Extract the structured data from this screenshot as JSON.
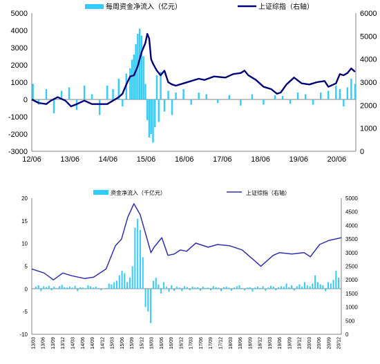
{
  "chart_data": [
    {
      "type": "bar+line",
      "title": "",
      "legend": [
        {
          "label": "每周资金净流入（亿元）",
          "kind": "bar",
          "color": "#33ccff"
        },
        {
          "label": "上证综指（右轴）",
          "kind": "line",
          "color": "#00007a"
        }
      ],
      "legend_placement": "top",
      "x_ticks": [
        "12/06",
        "13/06",
        "14/06",
        "15/06",
        "16/06",
        "17/06",
        "18/06",
        "19/06",
        "20/06"
      ],
      "x_range": [
        2012.42,
        2020.92
      ],
      "y_left": {
        "min": -3000,
        "max": 5000,
        "ticks": [
          -3000,
          -2000,
          -1000,
          0,
          1000,
          2000,
          3000,
          4000,
          5000
        ]
      },
      "y_right": {
        "min": 0,
        "max": 6000,
        "ticks": [
          0,
          1000,
          2000,
          3000,
          4000,
          5000,
          6000
        ]
      },
      "grid": false,
      "bar_series": {
        "name": "每周资金净流入（亿元）",
        "t": [
          2012.45,
          2012.6,
          2012.8,
          2013.0,
          2013.2,
          2013.4,
          2013.6,
          2013.8,
          2014.0,
          2014.2,
          2014.4,
          2014.55,
          2014.7,
          2014.8,
          2014.9,
          2015.0,
          2015.05,
          2015.1,
          2015.15,
          2015.2,
          2015.25,
          2015.3,
          2015.35,
          2015.4,
          2015.45,
          2015.5,
          2015.55,
          2015.6,
          2015.65,
          2015.7,
          2015.75,
          2015.8,
          2015.9,
          2016.0,
          2016.1,
          2016.2,
          2016.4,
          2016.6,
          2016.8,
          2017.0,
          2017.3,
          2017.6,
          2017.9,
          2018.2,
          2018.5,
          2018.8,
          2019.0,
          2019.2,
          2019.4,
          2019.6,
          2019.8,
          2020.0,
          2020.2,
          2020.4,
          2020.5,
          2020.6,
          2020.7,
          2020.8,
          2020.9
        ],
        "values": [
          900,
          -300,
          600,
          -800,
          500,
          700,
          -600,
          800,
          300,
          -900,
          800,
          600,
          1200,
          -400,
          1500,
          1800,
          2300,
          2600,
          3200,
          3800,
          4100,
          3700,
          2500,
          900,
          -1200,
          -2200,
          -2000,
          -2500,
          -1600,
          1400,
          -1300,
          1600,
          -700,
          500,
          -900,
          400,
          600,
          -300,
          400,
          300,
          -200,
          250,
          -350,
          300,
          -300,
          250,
          200,
          -250,
          400,
          300,
          -300,
          400,
          500,
          800,
          600,
          -400,
          700,
          1200,
          900
        ]
      },
      "line_series": {
        "name": "上证综指（右轴）",
        "t": [
          2012.42,
          2012.6,
          2012.8,
          2012.92,
          2013.1,
          2013.3,
          2013.45,
          2013.6,
          2013.8,
          2014.0,
          2014.2,
          2014.4,
          2014.55,
          2014.7,
          2014.8,
          2014.9,
          2015.0,
          2015.1,
          2015.2,
          2015.3,
          2015.4,
          2015.45,
          2015.5,
          2015.55,
          2015.6,
          2015.7,
          2015.8,
          2015.9,
          2016.0,
          2016.1,
          2016.2,
          2016.4,
          2016.6,
          2016.8,
          2016.95,
          2017.2,
          2017.5,
          2017.7,
          2017.9,
          2018.0,
          2018.1,
          2018.3,
          2018.5,
          2018.7,
          2018.85,
          2018.95,
          2019.1,
          2019.3,
          2019.5,
          2019.7,
          2019.9,
          2020.1,
          2020.2,
          2020.4,
          2020.5,
          2020.6,
          2020.7,
          2020.8,
          2020.9
        ],
        "values": [
          2250,
          2100,
          2050,
          2200,
          2350,
          2200,
          1950,
          2050,
          2200,
          2050,
          2050,
          2050,
          2200,
          2350,
          2500,
          2900,
          3250,
          3300,
          3700,
          4300,
          4700,
          5100,
          4900,
          4000,
          3800,
          3500,
          3300,
          3500,
          3000,
          2900,
          2850,
          2950,
          3050,
          3150,
          3100,
          3250,
          3200,
          3350,
          3400,
          3500,
          3300,
          3100,
          2800,
          2700,
          2500,
          2550,
          2900,
          3200,
          2950,
          2900,
          3000,
          3050,
          2800,
          2950,
          3350,
          3300,
          3400,
          3600,
          3450
        ]
      }
    },
    {
      "type": "bar+line",
      "title": "",
      "legend": [
        {
          "label": "资金净流入（千亿元）",
          "kind": "bar",
          "color": "#33ccff"
        },
        {
          "label": "上证综指（右轴）",
          "kind": "line",
          "color": "#2e2eb8"
        }
      ],
      "legend_placement": "top",
      "x_ticks": [
        "13/03",
        "13/06",
        "13/09",
        "13/12",
        "14/03",
        "14/06",
        "14/09",
        "14/12",
        "15/03",
        "15/06",
        "15/09",
        "15/12",
        "16/03",
        "16/06",
        "16/09",
        "16/12",
        "17/03",
        "17/06",
        "17/09",
        "17/12",
        "18/03",
        "18/06",
        "18/09",
        "18/12",
        "19/03",
        "19/06",
        "19/09",
        "19/12",
        "20/03",
        "20/06",
        "20/09",
        "20/12"
      ],
      "y_left": {
        "min": -10,
        "max": 20,
        "ticks": [
          -10,
          -5,
          0,
          5,
          10,
          15,
          20
        ]
      },
      "y_right": {
        "min": 0,
        "max": 5000,
        "ticks": [
          0,
          500,
          1000,
          1500,
          2000,
          2500,
          3000,
          3500,
          4000,
          4500,
          5000
        ]
      },
      "grid": false,
      "bar_series": {
        "name": "资金净流入（千亿元）",
        "values": [
          0.5,
          0.8,
          -0.5,
          0.6,
          0.4,
          0.7,
          -0.3,
          0.5,
          0.2,
          0.6,
          0.9,
          0.4,
          0.3,
          0.5,
          0.3,
          0.7,
          -0.5,
          0.4,
          0.3,
          0.2,
          0.8,
          0.6,
          0.3,
          0.5,
          0.2,
          -0.3,
          0.1,
          0.2,
          1.2,
          1.0,
          1.5,
          1.8,
          3.0,
          4.0,
          3.5,
          1.5,
          2.5,
          5.0,
          13.5,
          15.5,
          13.0,
          7.0,
          -4.0,
          -5.0,
          -7.5,
          1.8,
          2.5,
          1.0,
          -1.0,
          1.5,
          0.5,
          -0.6,
          0.8,
          -0.4,
          0.5,
          0.3,
          -0.5,
          0.6,
          0.4,
          -0.3,
          0.5,
          0.3,
          0.4,
          -0.4,
          0.5,
          0.2,
          0.3,
          -0.3,
          0.6,
          0.4,
          0.3,
          -0.5,
          0.4,
          0.5,
          0.3,
          -0.4,
          0.3,
          0.6,
          0.8,
          0.2,
          -0.3,
          0.3,
          0.4,
          -0.6,
          0.3,
          0.5,
          0.2,
          0.6,
          -0.4,
          0.3,
          0.7,
          0.5,
          -0.3,
          0.4,
          0.6,
          0.5,
          1.2,
          0.4,
          0.8,
          -0.3,
          0.6,
          1.0,
          0.5,
          1.5,
          0.8,
          0.6,
          1.2,
          3.0,
          1.5,
          1.0,
          0.8,
          -0.5,
          1.5,
          1.2,
          2.0,
          4.0,
          2.5
        ]
      },
      "line_series": {
        "name": "上证综指（右轴）",
        "x": [
          0,
          0.04,
          0.07,
          0.1,
          0.13,
          0.17,
          0.2,
          0.24,
          0.27,
          0.29,
          0.31,
          0.33,
          0.35,
          0.37,
          0.385,
          0.395,
          0.42,
          0.44,
          0.46,
          0.48,
          0.5,
          0.53,
          0.57,
          0.6,
          0.64,
          0.68,
          0.72,
          0.74,
          0.76,
          0.78,
          0.8,
          0.84,
          0.88,
          0.9,
          0.93,
          0.96,
          1.0
        ],
        "values": [
          2400,
          2250,
          2000,
          2250,
          2150,
          2050,
          2100,
          2400,
          3250,
          3500,
          4300,
          4800,
          4400,
          3600,
          3000,
          3200,
          3550,
          2900,
          2950,
          3100,
          3050,
          3350,
          3200,
          3300,
          3250,
          3100,
          2700,
          2500,
          2700,
          2900,
          3000,
          2950,
          3000,
          2850,
          3300,
          3450,
          3550
        ]
      }
    }
  ]
}
